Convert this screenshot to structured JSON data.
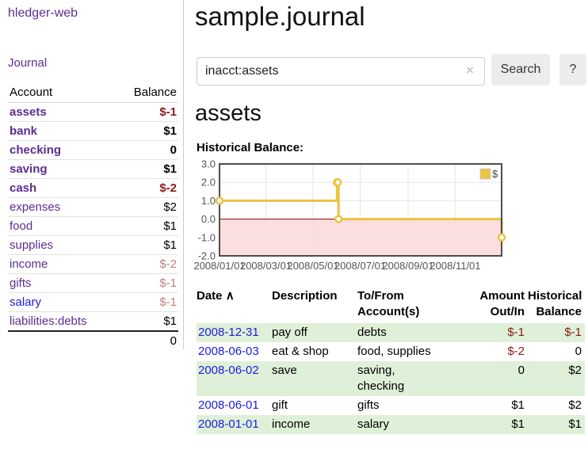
{
  "app": {
    "brand": "hledger-web",
    "nav_journal": "Journal"
  },
  "colors": {
    "accent_purple": "#5b2d90",
    "link_blue": "#1c1ce0",
    "negative_dark": "#8b1a1a",
    "negative_light": "#c08080",
    "row_green": "#dff0d8",
    "chart_gold": "#EDC240",
    "chart_negative_bg": "#fcdede",
    "zero_line": "#8b0000",
    "button_bg": "#ececec"
  },
  "icons": {
    "clear_icon": "×",
    "sort_asc_icon": "∧"
  },
  "sidebar": {
    "account_header": "Account",
    "balance_header": "Balance",
    "rows": [
      {
        "account": "assets",
        "balance": "$-1"
      },
      {
        "account": "bank",
        "balance": "$1"
      },
      {
        "account": "checking",
        "balance": "0"
      },
      {
        "account": "saving",
        "balance": "$1"
      },
      {
        "account": "cash",
        "balance": "$-2"
      },
      {
        "account": "expenses",
        "balance": "$2"
      },
      {
        "account": "food",
        "balance": "$1"
      },
      {
        "account": "supplies",
        "balance": "$1"
      },
      {
        "account": "income",
        "balance": "$-2"
      },
      {
        "account": "gifts",
        "balance": "$-1"
      },
      {
        "account": "salary",
        "balance": "$-1"
      },
      {
        "account": "liabilities:debts",
        "balance": "$1"
      }
    ],
    "total": "0"
  },
  "main": {
    "title": "sample.journal",
    "search": {
      "value": "inacct:assets",
      "search_label": "Search",
      "help_label": "?"
    },
    "account_heading": "assets",
    "chart_heading": "Historical Balance:"
  },
  "chart_data": {
    "type": "line",
    "style": "step",
    "title": "Historical Balance:",
    "series": [
      {
        "name": "$",
        "color": "#EDC240",
        "points": [
          [
            "2008-01-01",
            1
          ],
          [
            "2008-06-01",
            2
          ],
          [
            "2008-06-02",
            2
          ],
          [
            "2008-06-03",
            0
          ],
          [
            "2008-12-31",
            -1
          ]
        ]
      }
    ],
    "xlim": [
      "2008-01-01",
      "2008-12-31"
    ],
    "ylim": [
      -2,
      3
    ],
    "y_ticks": [
      3,
      2,
      1,
      0,
      -1,
      -2
    ],
    "x_tick_dates": [
      "2008-01-01",
      "2008-03-01",
      "2008-05-01",
      "2008-07-01",
      "2008-09-01",
      "2008-11-01"
    ],
    "x_ticks": [
      "2008/01/01",
      "2008/03/01",
      "2008/05/01",
      "2008/07/01",
      "2008/09/01",
      "2008/11/01"
    ],
    "grid": true,
    "legend_position": "top-right",
    "negative_region_color": "#fcdede",
    "zero_line_color": "#8b0000"
  },
  "register": {
    "headers": {
      "date": "Date",
      "description": "Description",
      "accounts": "To/From\nAccount(s)",
      "amount": "Amount\nOut/In",
      "balance": "Historical\nBalance"
    },
    "rows": [
      {
        "date": "2008-12-31",
        "description": "pay off",
        "accounts": "debts",
        "amount": "$-1",
        "balance": "$-1"
      },
      {
        "date": "2008-06-03",
        "description": "eat & shop",
        "accounts": "food, supplies",
        "amount": "$-2",
        "balance": "0"
      },
      {
        "date": "2008-06-02",
        "description": "save",
        "accounts": "saving,\nchecking",
        "amount": "0",
        "balance": "$2"
      },
      {
        "date": "2008-06-01",
        "description": "gift",
        "accounts": "gifts",
        "amount": "$1",
        "balance": "$2"
      },
      {
        "date": "2008-01-01",
        "description": "income",
        "accounts": "salary",
        "amount": "$1",
        "balance": "$1"
      }
    ]
  }
}
